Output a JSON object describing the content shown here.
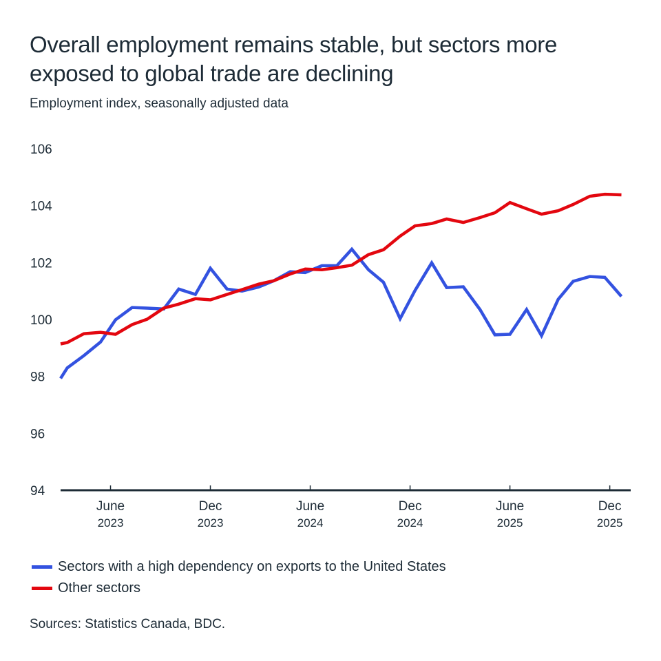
{
  "title": "Overall employment remains stable, but sectors more exposed to global trade are declining",
  "subtitle": "Employment index, seasonally adjusted data",
  "source": "Sources: Statistics Canada, BDC.",
  "colors": {
    "blue": "#3352e0",
    "red": "#e3070f",
    "axis": "#1d2b36",
    "text": "#1d2b36"
  },
  "chart_data": {
    "type": "line",
    "title": "Overall employment remains stable, but sectors more exposed to global trade are declining",
    "subtitle": "Employment index, seasonally adjusted data",
    "xlabel": "",
    "ylabel": "",
    "ylim": [
      94,
      106
    ],
    "yticks": [
      94,
      96,
      98,
      100,
      102,
      104,
      106
    ],
    "xlim_months": [
      0,
      34.6
    ],
    "x_note": "x = months since March 2023 (approx.)",
    "xticks": [
      {
        "month": 3,
        "label": "June",
        "year": "2023"
      },
      {
        "month": 9,
        "label": "Dec",
        "year": "2023"
      },
      {
        "month": 15,
        "label": "June",
        "year": "2024"
      },
      {
        "month": 21,
        "label": "Dec",
        "year": "2024"
      },
      {
        "month": 27,
        "label": "June",
        "year": "2025"
      },
      {
        "month": 33,
        "label": "Dec",
        "year": "2025"
      }
    ],
    "grid": false,
    "legend_position": "bottom-left",
    "x": [
      0,
      0.4,
      1.4,
      2.4,
      3.3,
      4.3,
      5.2,
      6.2,
      7.1,
      8.1,
      9.0,
      10.0,
      10.9,
      11.9,
      12.8,
      13.8,
      14.7,
      15.7,
      16.6,
      17.5,
      18.5,
      19.4,
      20.4,
      21.3,
      22.3,
      23.2,
      24.2,
      25.2,
      26.1,
      27.0,
      28.0,
      28.9,
      29.9,
      30.8,
      31.8,
      32.7,
      33.7
    ],
    "series": [
      {
        "name": "Sectors with a high dependency on exports to the United States",
        "color": "#3352e0",
        "values": [
          97.93,
          98.3,
          98.73,
          99.21,
          99.99,
          100.42,
          100.4,
          100.37,
          101.07,
          100.88,
          101.8,
          101.07,
          101.0,
          101.14,
          101.36,
          101.68,
          101.65,
          101.89,
          101.89,
          102.47,
          101.75,
          101.31,
          100.03,
          101.02,
          101.99,
          101.12,
          101.15,
          100.35,
          99.46,
          99.48,
          100.35,
          99.43,
          100.71,
          101.34,
          101.51,
          101.48,
          100.81
        ]
      },
      {
        "name": "Other sectors",
        "color": "#e3070f",
        "values": [
          99.14,
          99.19,
          99.5,
          99.55,
          99.48,
          99.82,
          100.01,
          100.4,
          100.54,
          100.73,
          100.69,
          100.88,
          101.05,
          101.24,
          101.36,
          101.6,
          101.77,
          101.75,
          101.82,
          101.91,
          102.28,
          102.45,
          102.93,
          103.29,
          103.37,
          103.53,
          103.41,
          103.58,
          103.75,
          104.11,
          103.89,
          103.7,
          103.82,
          104.04,
          104.33,
          104.4,
          104.38
        ]
      }
    ]
  }
}
